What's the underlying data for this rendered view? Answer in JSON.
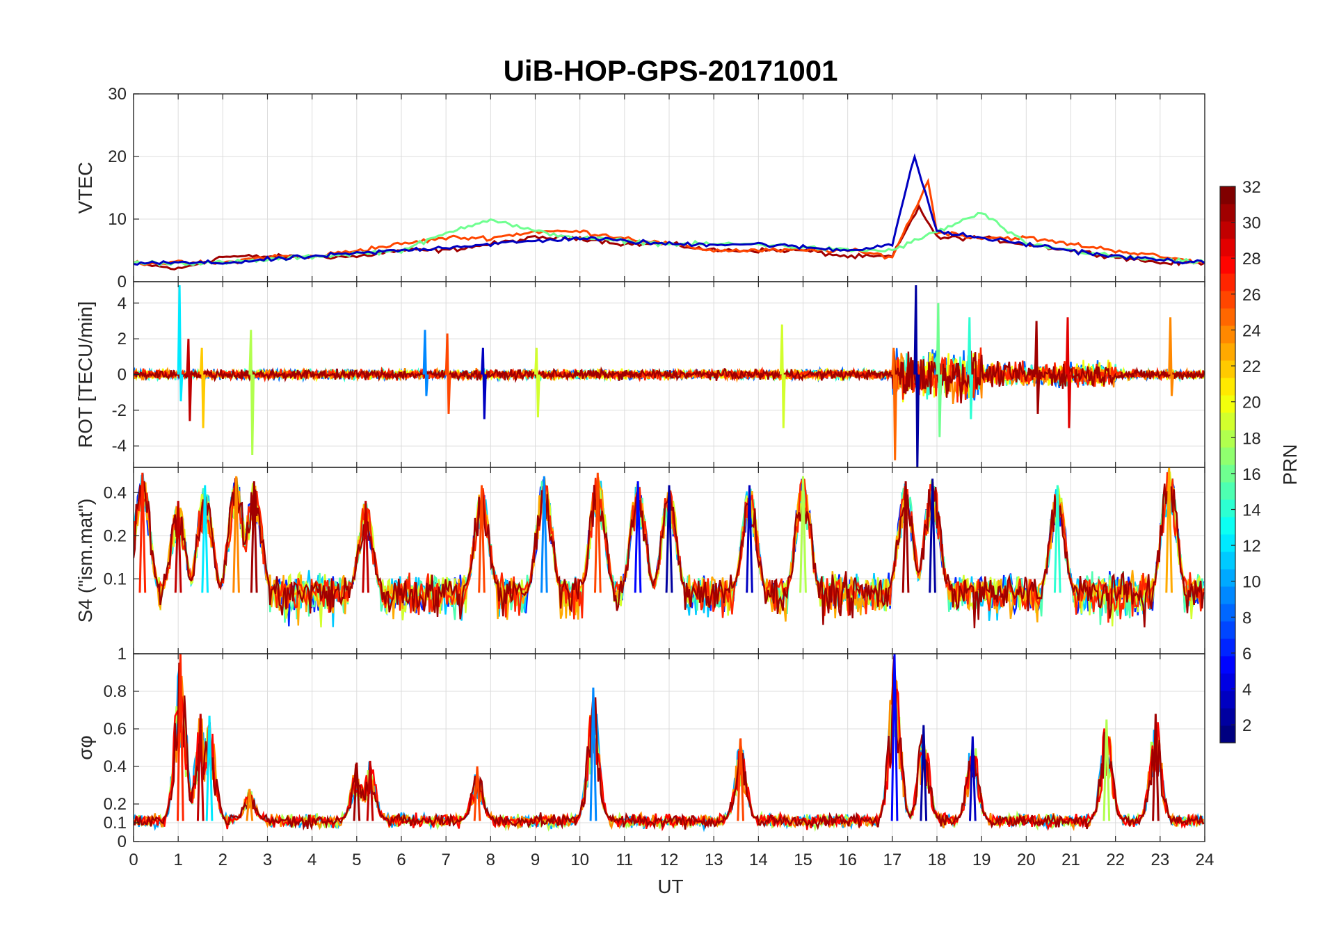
{
  "figure": {
    "title": "UiB-HOP-GPS-20171001",
    "xlabel": "UT"
  },
  "chart_data": [
    {
      "type": "line",
      "panel": "vtec",
      "ylabel": "VTEC",
      "xlim": [
        0,
        24
      ],
      "ylim": [
        0,
        30
      ],
      "yticks": [
        0,
        10,
        20,
        30
      ],
      "x_ticks": [
        0,
        1,
        2,
        3,
        4,
        5,
        6,
        7,
        8,
        9,
        10,
        11,
        12,
        13,
        14,
        15,
        16,
        17,
        18,
        19,
        20,
        21,
        22,
        23,
        24
      ],
      "xlabel": "",
      "grid": true,
      "series": [
        {
          "prn": 31,
          "x": [
            0,
            1,
            2,
            3,
            4,
            5,
            6,
            7,
            8,
            9,
            10,
            11,
            12,
            13,
            14,
            15,
            16,
            17,
            17.6,
            18,
            19,
            20,
            21,
            22,
            23,
            24
          ],
          "values": [
            3,
            2,
            4,
            4,
            4,
            4,
            5,
            5,
            6,
            7,
            7,
            6,
            6,
            5,
            5,
            5,
            4,
            4,
            12,
            7,
            7,
            6,
            5,
            4,
            3,
            3
          ]
        },
        {
          "prn": 26,
          "x": [
            0,
            1,
            2,
            3,
            4,
            5,
            6,
            7,
            8,
            9,
            10,
            11,
            12,
            13,
            14,
            15,
            16,
            17,
            17.8,
            18,
            19,
            20,
            21,
            22,
            23,
            24
          ],
          "values": [
            3,
            3,
            3,
            4,
            4,
            5,
            6,
            7,
            7,
            8,
            8,
            7,
            6,
            5,
            5,
            5,
            5,
            4,
            16,
            8,
            7,
            7,
            6,
            5,
            4,
            3
          ]
        },
        {
          "prn": 16,
          "x": [
            0,
            2,
            4,
            6,
            7.5,
            8,
            9,
            10,
            12,
            14,
            16,
            17,
            18,
            19,
            20,
            22,
            24
          ],
          "values": [
            3,
            3,
            4,
            5,
            9,
            10,
            8,
            7,
            6,
            6,
            5,
            5,
            8,
            11,
            6,
            4,
            3
          ]
        },
        {
          "prn": 3,
          "x": [
            0,
            2,
            4,
            6,
            8,
            10,
            12,
            14,
            16,
            17,
            17.5,
            18,
            20,
            22,
            24
          ],
          "values": [
            3,
            3,
            4,
            5,
            6,
            7,
            6,
            6,
            5,
            6,
            20,
            8,
            6,
            4,
            3
          ]
        }
      ]
    },
    {
      "type": "line",
      "panel": "rot",
      "ylabel": "ROT [TECU/min]",
      "xlim": [
        0,
        24
      ],
      "ylim": [
        -5.2,
        5.2
      ],
      "yticks": [
        -4,
        -2,
        0,
        2,
        4
      ],
      "x_ticks": [
        0,
        1,
        2,
        3,
        4,
        5,
        6,
        7,
        8,
        9,
        10,
        11,
        12,
        13,
        14,
        15,
        16,
        17,
        18,
        19,
        20,
        21,
        22,
        23,
        24
      ],
      "xlabel": "",
      "grid": true,
      "spikes": [
        {
          "x": 1.0,
          "values": [
            5,
            -1.5
          ]
        },
        {
          "x": 1.2,
          "values": [
            2,
            -2.6
          ]
        },
        {
          "x": 1.5,
          "values": [
            1.5,
            -3
          ]
        },
        {
          "x": 2.6,
          "values": [
            2.5,
            -4.5
          ]
        },
        {
          "x": 6.5,
          "values": [
            2.5,
            -1.2
          ]
        },
        {
          "x": 7.0,
          "values": [
            2.3,
            -2.2
          ]
        },
        {
          "x": 7.8,
          "values": [
            1.5,
            -2.5
          ]
        },
        {
          "x": 9.0,
          "values": [
            1.5,
            -2.4
          ]
        },
        {
          "x": 14.5,
          "values": [
            2.8,
            -3
          ]
        },
        {
          "x": 17.0,
          "values": [
            1.5,
            -4.8
          ]
        },
        {
          "x": 17.5,
          "values": [
            5,
            -5.5
          ]
        },
        {
          "x": 18.0,
          "values": [
            4,
            -3.5
          ]
        },
        {
          "x": 18.7,
          "values": [
            3.2,
            -2.5
          ]
        },
        {
          "x": 20.2,
          "values": [
            3,
            -2.2
          ]
        },
        {
          "x": 20.9,
          "values": [
            3.2,
            -3
          ]
        },
        {
          "x": 23.2,
          "values": [
            3.2,
            -1.2
          ]
        }
      ]
    },
    {
      "type": "line",
      "panel": "s4",
      "ylabel": "S4 (\"ism.mat\")",
      "xlim": [
        0,
        24
      ],
      "ylim": [
        0.03,
        0.6
      ],
      "yscale": "log",
      "yticks": [
        0.1,
        0.2,
        0.4
      ],
      "x_ticks": [
        0,
        1,
        2,
        3,
        4,
        5,
        6,
        7,
        8,
        9,
        10,
        11,
        12,
        13,
        14,
        15,
        16,
        17,
        18,
        19,
        20,
        21,
        22,
        23,
        24
      ],
      "xlabel": "",
      "grid": true,
      "peaks": [
        {
          "x": 0.2,
          "value": 0.55
        },
        {
          "x": 1.0,
          "value": 0.35
        },
        {
          "x": 1.6,
          "value": 0.45
        },
        {
          "x": 2.3,
          "value": 0.52
        },
        {
          "x": 2.7,
          "value": 0.48
        },
        {
          "x": 5.2,
          "value": 0.35
        },
        {
          "x": 7.8,
          "value": 0.45
        },
        {
          "x": 9.2,
          "value": 0.52
        },
        {
          "x": 10.4,
          "value": 0.55
        },
        {
          "x": 11.3,
          "value": 0.48
        },
        {
          "x": 12.0,
          "value": 0.45
        },
        {
          "x": 13.8,
          "value": 0.45
        },
        {
          "x": 15.0,
          "value": 0.52
        },
        {
          "x": 17.3,
          "value": 0.48
        },
        {
          "x": 17.9,
          "value": 0.5
        },
        {
          "x": 20.7,
          "value": 0.45
        },
        {
          "x": 23.2,
          "value": 0.6
        }
      ]
    },
    {
      "type": "line",
      "panel": "sigma_phi",
      "ylabel": "σφ",
      "xlim": [
        0,
        24
      ],
      "ylim": [
        0,
        1
      ],
      "yticks": [
        0,
        0.1,
        0.2,
        0.4,
        0.6,
        0.8,
        1
      ],
      "x_ticks": [
        0,
        1,
        2,
        3,
        4,
        5,
        6,
        7,
        8,
        9,
        10,
        11,
        12,
        13,
        14,
        15,
        16,
        17,
        18,
        19,
        20,
        21,
        22,
        23,
        24
      ],
      "xlabel": "UT",
      "grid": true,
      "peaks": [
        {
          "x": 1.05,
          "value": 1.0
        },
        {
          "x": 1.5,
          "value": 0.68
        },
        {
          "x": 1.7,
          "value": 0.67
        },
        {
          "x": 2.6,
          "value": 0.28
        },
        {
          "x": 5.0,
          "value": 0.42
        },
        {
          "x": 5.3,
          "value": 0.43
        },
        {
          "x": 7.7,
          "value": 0.4
        },
        {
          "x": 10.3,
          "value": 0.82
        },
        {
          "x": 13.6,
          "value": 0.55
        },
        {
          "x": 17.05,
          "value": 1.0
        },
        {
          "x": 17.7,
          "value": 0.62
        },
        {
          "x": 18.8,
          "value": 0.56
        },
        {
          "x": 21.8,
          "value": 0.65
        },
        {
          "x": 22.9,
          "value": 0.68
        }
      ]
    }
  ],
  "colorbar": {
    "label": "PRN",
    "range": [
      1,
      32
    ],
    "ticks": [
      2,
      4,
      6,
      8,
      10,
      12,
      14,
      16,
      18,
      20,
      22,
      24,
      26,
      28,
      30,
      32
    ],
    "colormap": "jet"
  }
}
